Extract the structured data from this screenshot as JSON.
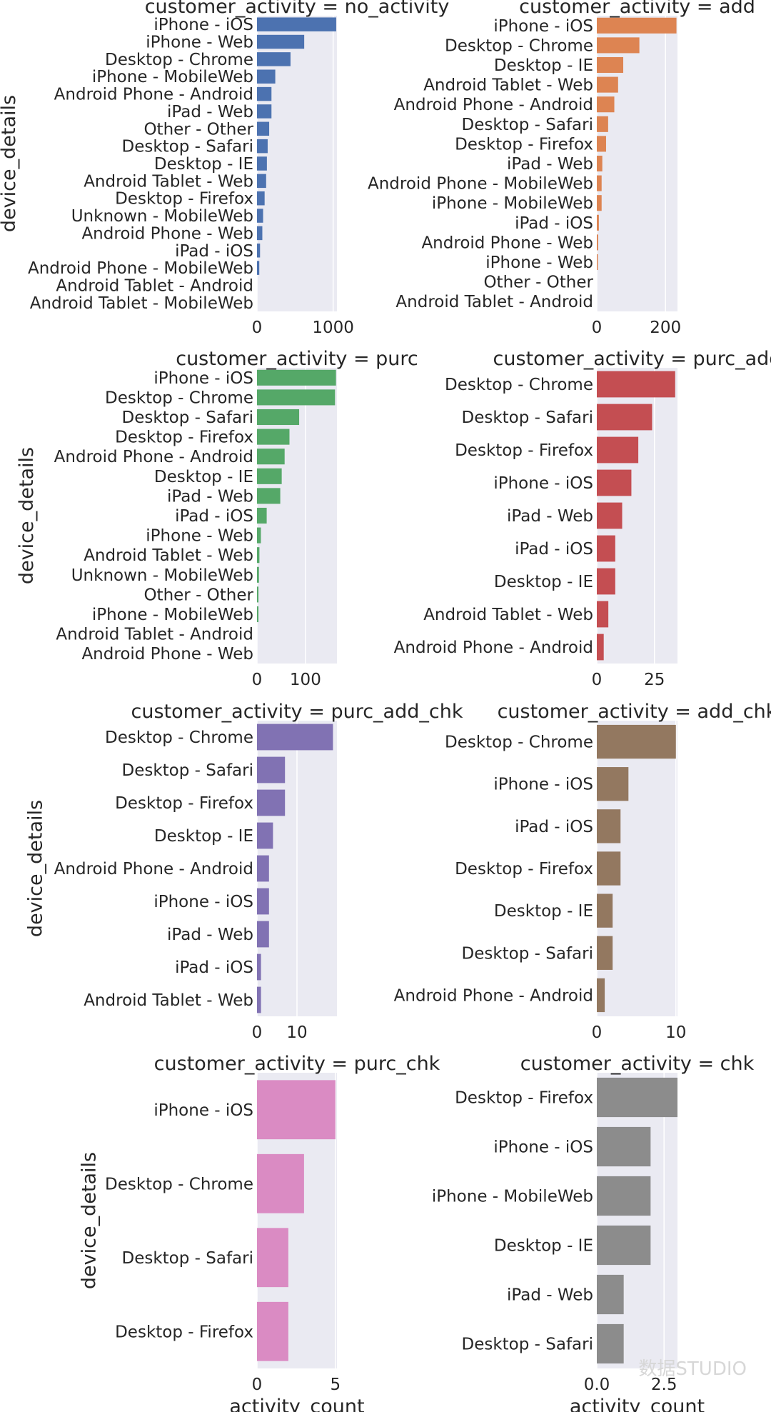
{
  "figure": {
    "watermark": "数据STUDIO",
    "xlabel": "activity_count",
    "ylabel": "device_details"
  },
  "chart_data": [
    {
      "type": "bar",
      "orientation": "horizontal",
      "title": "customer_activity = no_activity",
      "color": "#4c72b0",
      "xlim": [
        0,
        1050
      ],
      "xticks": [
        0,
        1000
      ],
      "xtick_labels": [
        "0",
        "1000"
      ],
      "categories": [
        "iPhone - iOS",
        "iPhone - Web",
        "Desktop - Chrome",
        "iPhone - MobileWeb",
        "Android Phone - Android",
        "iPad - Web",
        "Other - Other",
        "Desktop - Safari",
        "Desktop - IE",
        "Android Tablet - Web",
        "Desktop - Firefox",
        "Unknown - MobileWeb",
        "Android Phone - Web",
        "iPad - iOS",
        "Android Phone - MobileWeb",
        "Android Tablet - Android",
        "Android Tablet - MobileWeb"
      ],
      "values": [
        1040,
        620,
        440,
        240,
        190,
        190,
        160,
        140,
        130,
        120,
        100,
        80,
        70,
        40,
        30,
        0,
        0
      ]
    },
    {
      "type": "bar",
      "orientation": "horizontal",
      "title": "customer_activity = add",
      "color": "#dd8452",
      "xlim": [
        0,
        235
      ],
      "xticks": [
        0,
        200
      ],
      "xtick_labels": [
        "0",
        "200"
      ],
      "categories": [
        "iPhone - iOS",
        "Desktop - Chrome",
        "Desktop - IE",
        "Android Tablet - Web",
        "Android Phone - Android",
        "Desktop - Safari",
        "Desktop - Firefox",
        "iPad - Web",
        "Android Phone - MobileWeb",
        "iPhone - MobileWeb",
        "iPad - iOS",
        "Android Phone - Web",
        "iPhone - Web",
        "Other - Other",
        "Android Tablet - Android"
      ],
      "values": [
        232,
        124,
        77,
        62,
        51,
        33,
        27,
        16,
        14,
        14,
        6,
        4,
        3,
        0,
        0
      ]
    },
    {
      "type": "bar",
      "orientation": "horizontal",
      "title": "customer_activity = purc",
      "color": "#55a868",
      "xlim": [
        0,
        165
      ],
      "xticks": [
        0,
        100
      ],
      "xtick_labels": [
        "0",
        "100"
      ],
      "categories": [
        "iPhone - iOS",
        "Desktop - Chrome",
        "Desktop - Safari",
        "Desktop - Firefox",
        "Android Phone - Android",
        "Desktop - IE",
        "iPad - Web",
        "iPad - iOS",
        "iPhone - Web",
        "Android Tablet - Web",
        "Unknown - MobileWeb",
        "Other - Other",
        "iPhone - MobileWeb",
        "Android Tablet - Android",
        "Android Phone - Web"
      ],
      "values": [
        163,
        161,
        87,
        67,
        57,
        51,
        48,
        20,
        8,
        5,
        4,
        3,
        3,
        0,
        0
      ]
    },
    {
      "type": "bar",
      "orientation": "horizontal",
      "title": "customer_activity = purc_add",
      "color": "#c44e52",
      "xlim": [
        0,
        35
      ],
      "xticks": [
        0,
        25
      ],
      "xtick_labels": [
        "0",
        "25"
      ],
      "categories": [
        "Desktop - Chrome",
        "Desktop - Safari",
        "Desktop - Firefox",
        "iPhone - iOS",
        "iPad - Web",
        "iPad - iOS",
        "Desktop - IE",
        "Android Tablet - Web",
        "Android Phone - Android"
      ],
      "values": [
        34,
        24,
        18,
        15,
        11,
        8,
        8,
        5,
        3
      ]
    },
    {
      "type": "bar",
      "orientation": "horizontal",
      "title": "customer_activity = purc_add_chk",
      "color": "#8172b3",
      "xlim": [
        0,
        20
      ],
      "xticks": [
        0,
        10
      ],
      "xtick_labels": [
        "0",
        "10"
      ],
      "categories": [
        "Desktop - Chrome",
        "Desktop - Safari",
        "Desktop - Firefox",
        "Desktop - IE",
        "Android Phone - Android",
        "iPhone - iOS",
        "iPad - Web",
        "iPad - iOS",
        "Android Tablet - Web"
      ],
      "values": [
        19,
        7,
        7,
        4,
        3,
        3,
        3,
        1,
        1
      ]
    },
    {
      "type": "bar",
      "orientation": "horizontal",
      "title": "customer_activity = add_chk",
      "color": "#937860",
      "xlim": [
        0,
        10.2
      ],
      "xticks": [
        0,
        10
      ],
      "xtick_labels": [
        "0",
        "10"
      ],
      "categories": [
        "Desktop - Chrome",
        "iPhone - iOS",
        "iPad - iOS",
        "Desktop - Firefox",
        "Desktop - IE",
        "Desktop - Safari",
        "Android Phone - Android"
      ],
      "values": [
        10,
        4,
        3,
        3,
        2,
        2,
        1
      ]
    },
    {
      "type": "bar",
      "orientation": "horizontal",
      "title": "customer_activity = purc_chk",
      "color": "#da8bc3",
      "xlim": [
        0,
        5.1
      ],
      "xticks": [
        0,
        5
      ],
      "xtick_labels": [
        "0",
        "5"
      ],
      "categories": [
        "iPhone - iOS",
        "Desktop - Chrome",
        "Desktop - Safari",
        "Desktop - Firefox"
      ],
      "values": [
        5,
        3,
        2,
        2
      ]
    },
    {
      "type": "bar",
      "orientation": "horizontal",
      "title": "customer_activity = chk",
      "color": "#8c8c8c",
      "xlim": [
        0,
        3.0
      ],
      "xticks": [
        0,
        2.5
      ],
      "xtick_labels": [
        "0.0",
        "2.5"
      ],
      "categories": [
        "Desktop - Firefox",
        "iPhone - iOS",
        "iPhone - MobileWeb",
        "Desktop - IE",
        "iPad - Web",
        "Desktop - Safari"
      ],
      "values": [
        3,
        2,
        2,
        2,
        1,
        1
      ]
    }
  ]
}
